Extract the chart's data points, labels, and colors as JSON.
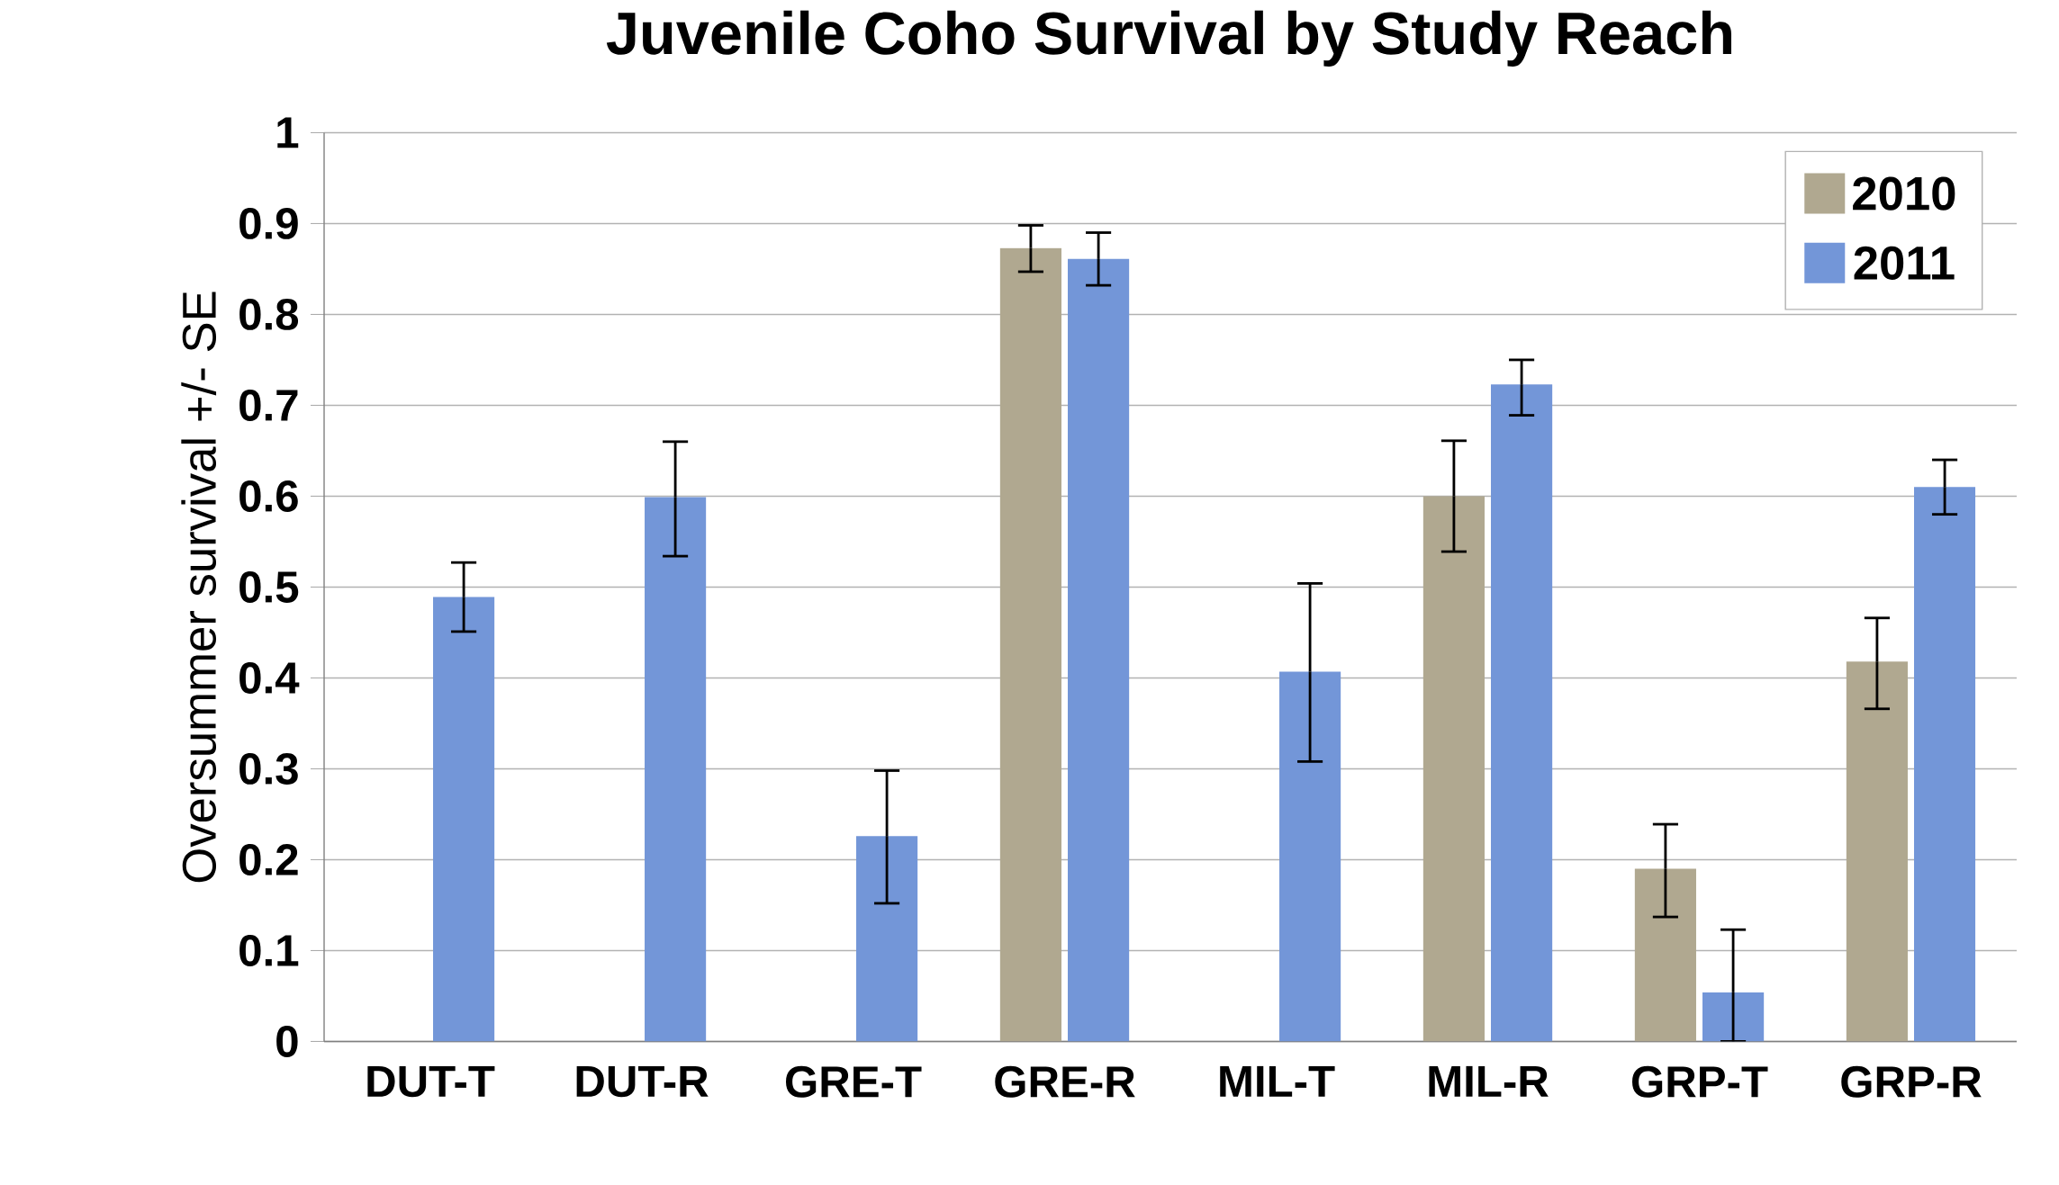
{
  "chart_data": {
    "type": "bar",
    "title": "Juvenile Coho Survival by Study Reach",
    "ylabel": "Oversummer survival +/- SE",
    "categories": [
      "DUT-T",
      "DUT-R",
      "GRE-T",
      "GRE-R",
      "MIL-T",
      "MIL-R",
      "GRP-T",
      "GRP-R"
    ],
    "series": [
      {
        "name": "2010",
        "color": "#b0a890",
        "values": [
          null,
          null,
          null,
          0.873,
          null,
          0.6,
          0.19,
          0.418
        ],
        "errors": [
          null,
          null,
          null,
          [
            0.847,
            0.898
          ],
          null,
          [
            0.539,
            0.661
          ],
          [
            0.137,
            0.239
          ],
          [
            0.366,
            0.466
          ]
        ]
      },
      {
        "name": "2011",
        "color": "#7396d8",
        "values": [
          0.489,
          0.599,
          0.226,
          0.861,
          0.407,
          0.723,
          0.054,
          0.61
        ],
        "errors": [
          [
            0.451,
            0.527
          ],
          [
            0.534,
            0.66
          ],
          [
            0.152,
            0.298
          ],
          [
            0.832,
            0.89
          ],
          [
            0.308,
            0.504
          ],
          [
            0.689,
            0.75
          ],
          [
            0,
            0.123
          ],
          [
            0.58,
            0.64
          ]
        ]
      }
    ],
    "ylim": [
      0,
      1
    ],
    "yticks": [
      0,
      0.1,
      0.2,
      0.3,
      0.4,
      0.5,
      0.6,
      0.7,
      0.8,
      0.9,
      1
    ],
    "grid": "y",
    "legend": "top right"
  }
}
